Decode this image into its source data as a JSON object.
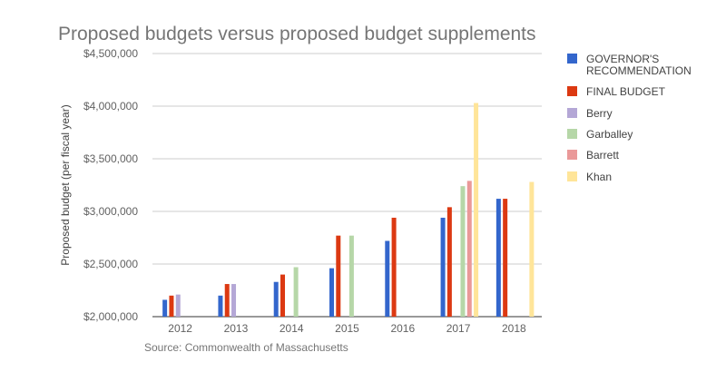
{
  "chart_data": {
    "type": "bar",
    "title": "Proposed budgets versus proposed budget supplements",
    "xlabel": "",
    "ylabel": "Proposed budget (per fiscal year)",
    "source": "Source: Commonwealth of Massachusetts",
    "ylim": [
      2000000,
      4500000
    ],
    "yticks": [
      "$2,000,000",
      "$2,500,000",
      "$3,000,000",
      "$3,500,000",
      "$4,000,000",
      "$4,500,000"
    ],
    "ytick_values": [
      2000000,
      2500000,
      3000000,
      3500000,
      4000000,
      4500000
    ],
    "grid": true,
    "legend_position": "right",
    "categories": [
      "2012",
      "2013",
      "2014",
      "2015",
      "2016",
      "2017",
      "2018"
    ],
    "series": [
      {
        "name": "GOVERNOR'S RECOMMENDATION",
        "color": "#3366cc",
        "values": [
          2160000,
          2200000,
          2330000,
          2460000,
          2720000,
          2940000,
          3120000
        ]
      },
      {
        "name": "FINAL BUDGET",
        "color": "#dc3912",
        "values": [
          2200000,
          2310000,
          2400000,
          2770000,
          2940000,
          3040000,
          3120000
        ]
      },
      {
        "name": "Berry",
        "color": "#b4a7d6",
        "values": [
          2210000,
          2310000,
          null,
          null,
          null,
          null,
          null
        ]
      },
      {
        "name": "Garballey",
        "color": "#b6d7a8",
        "values": [
          null,
          null,
          2470000,
          2770000,
          null,
          3240000,
          null
        ]
      },
      {
        "name": "Barrett",
        "color": "#ea9999",
        "values": [
          null,
          null,
          null,
          null,
          null,
          3290000,
          null
        ]
      },
      {
        "name": "Khan",
        "color": "#ffe599",
        "values": [
          null,
          null,
          null,
          null,
          null,
          4030000,
          3280000
        ]
      }
    ]
  }
}
